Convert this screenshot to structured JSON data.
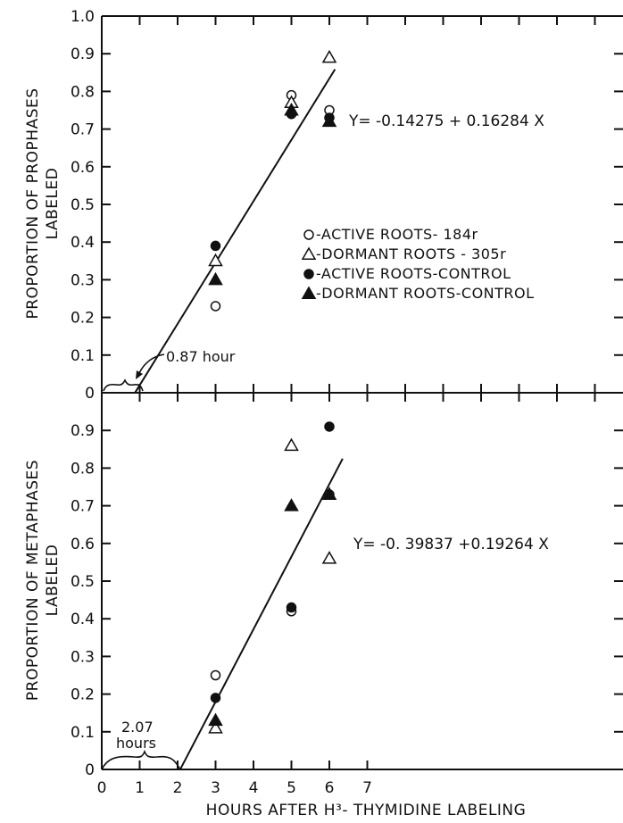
{
  "chart_data": [
    {
      "type": "scatter",
      "ylabel_line1": "PROPORTION OF PROPHASES",
      "ylabel_line2": "LABELED",
      "xlim": [
        0,
        7
      ],
      "ylim": [
        0,
        1.0
      ],
      "yticks": [
        "1.0",
        "0.9",
        "0.8",
        "0.7",
        "0.6",
        "0.5",
        "0.4",
        "0.3",
        "0.2",
        "0.1",
        "0"
      ],
      "series": [
        {
          "name": "ACTIVE ROOTS- 184r",
          "marker": "open-circle",
          "points": [
            [
              3,
              0.23
            ],
            [
              5,
              0.79
            ],
            [
              6,
              0.75
            ]
          ]
        },
        {
          "name": "DORMANT ROOTS - 305r",
          "marker": "open-triangle",
          "points": [
            [
              3,
              0.35
            ],
            [
              5,
              0.77
            ],
            [
              6,
              0.89
            ]
          ]
        },
        {
          "name": "ACTIVE ROOTS-CONTROL",
          "marker": "filled-circle",
          "points": [
            [
              3,
              0.39
            ],
            [
              5,
              0.74
            ],
            [
              6,
              0.73
            ]
          ]
        },
        {
          "name": "DORMANT  ROOTS-CONTROL",
          "marker": "filled-triangle",
          "points": [
            [
              3,
              0.3
            ],
            [
              5,
              0.75
            ],
            [
              6,
              0.72
            ]
          ]
        }
      ],
      "regression": {
        "label": "Y= -0.14275 + 0.16284 X",
        "intercept": -0.14275,
        "slope": 0.16284,
        "x_range": [
          0.87,
          6.15
        ]
      },
      "annotation": "0.87 hour"
    },
    {
      "type": "scatter",
      "ylabel_line1": "PROPORTION OF METAPHASES",
      "ylabel_line2": "LABELED",
      "xlabel": "HOURS  AFTER  H³- THYMIDINE  LABELING",
      "xlim": [
        0,
        7
      ],
      "ylim": [
        0,
        1.0
      ],
      "xticks": [
        "0",
        "1",
        "2",
        "3",
        "4",
        "5",
        "6",
        "7"
      ],
      "yticks": [
        "0.9",
        "0.8",
        "0.7",
        "0.6",
        "0.5",
        "0.4",
        "0.3",
        "0.2",
        "0.1",
        "0"
      ],
      "series": [
        {
          "name": "ACTIVE ROOTS- 184r",
          "marker": "open-circle",
          "points": [
            [
              3,
              0.25
            ],
            [
              5,
              0.42
            ],
            [
              6,
              0.73
            ]
          ]
        },
        {
          "name": "DORMANT ROOTS - 305r",
          "marker": "open-triangle",
          "points": [
            [
              3,
              0.11
            ],
            [
              5,
              0.86
            ],
            [
              6,
              0.56
            ]
          ]
        },
        {
          "name": "ACTIVE ROOTS-CONTROL",
          "marker": "filled-circle",
          "points": [
            [
              3,
              0.19
            ],
            [
              5,
              0.43
            ],
            [
              6,
              0.91
            ]
          ]
        },
        {
          "name": "DORMANT  ROOTS-CONTROL",
          "marker": "filled-triangle",
          "points": [
            [
              3,
              0.13
            ],
            [
              5,
              0.7
            ],
            [
              6,
              0.73
            ]
          ]
        }
      ],
      "regression": {
        "label": "Y= -0. 39837 +0.19264 X",
        "intercept": -0.39837,
        "slope": 0.19264,
        "x_range": [
          2.07,
          6.35
        ]
      },
      "annotation_line1": "2.07",
      "annotation_line2": "hours"
    }
  ],
  "legend": {
    "items": [
      {
        "label": "-ACTIVE ROOTS- 184r",
        "marker": "open-circle"
      },
      {
        "label": "-DORMANT ROOTS - 305r",
        "marker": "open-triangle"
      },
      {
        "label": "-ACTIVE ROOTS-CONTROL",
        "marker": "filled-circle"
      },
      {
        "label": "-DORMANT  ROOTS-CONTROL",
        "marker": "filled-triangle"
      }
    ]
  },
  "colors": {
    "ink": "#111111",
    "background": "#ffffff"
  }
}
